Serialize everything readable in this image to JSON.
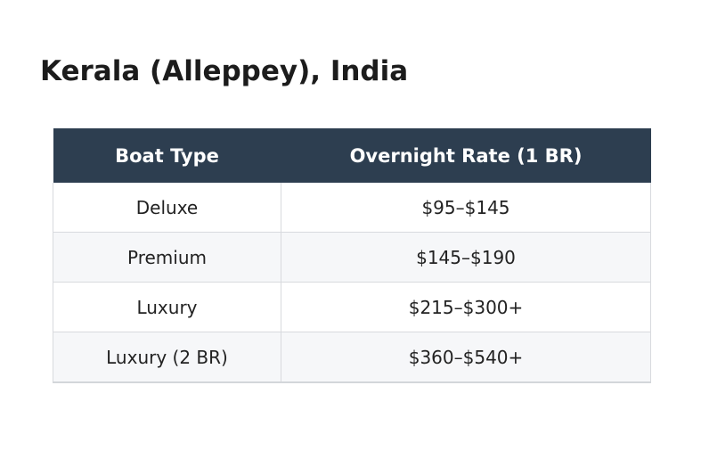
{
  "title": "Kerala (Alleppey), India",
  "table": {
    "headers": [
      "Boat Type",
      "Overnight Rate (1 BR)"
    ],
    "rows": [
      {
        "boat_type": "Deluxe",
        "rate": "$95–$145"
      },
      {
        "boat_type": "Premium",
        "rate": "$145–$190"
      },
      {
        "boat_type": "Luxury",
        "rate": "$215–$300+"
      },
      {
        "boat_type": "Luxury (2 BR)",
        "rate": "$360–$540+"
      }
    ]
  },
  "colors": {
    "header_bg": "#2d3e50",
    "header_text": "#ffffff",
    "row_alt_bg": "#f6f7f9",
    "border": "#d8dade"
  }
}
